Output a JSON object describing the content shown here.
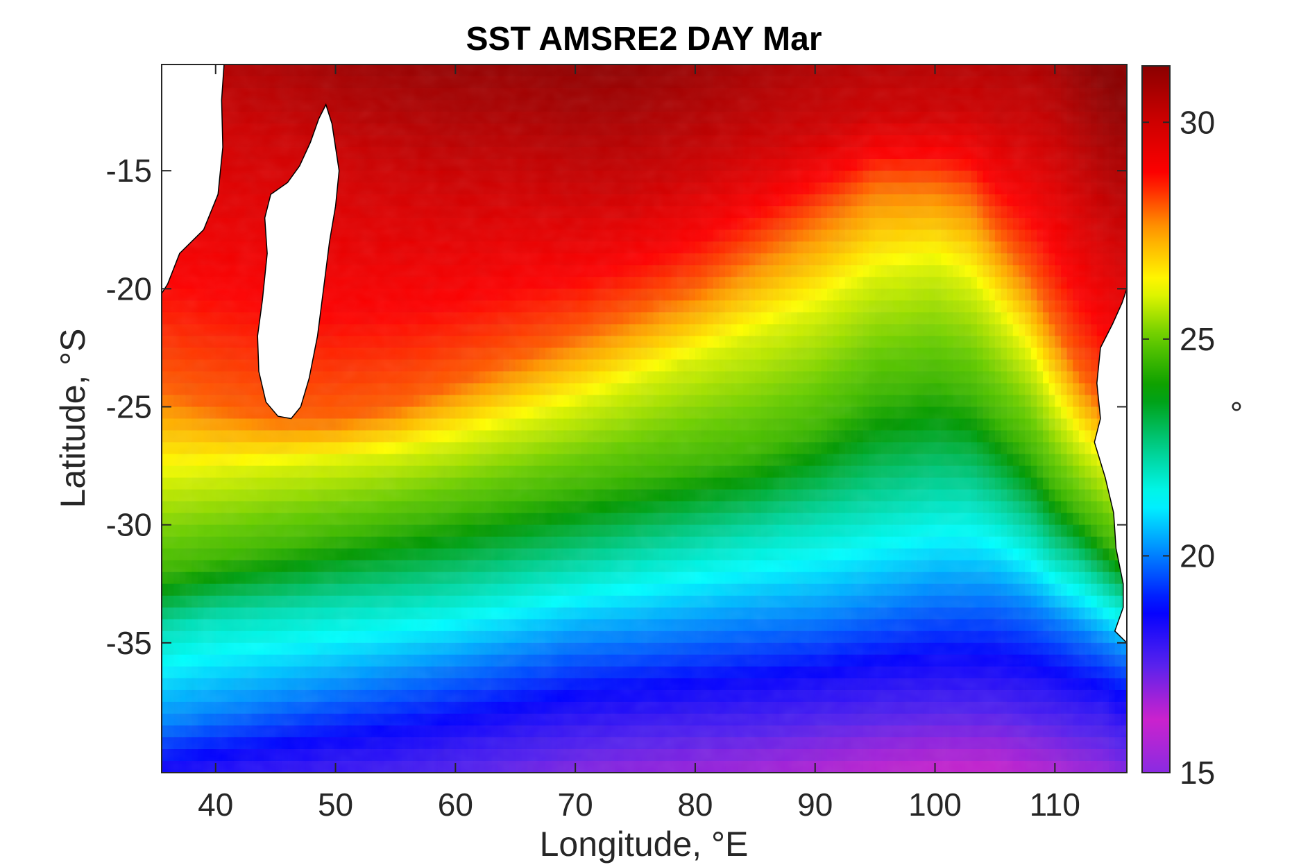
{
  "chart_data": {
    "type": "heatmap",
    "title": "SST AMSRE2 DAY Mar",
    "xlabel": "Longitude, °E",
    "ylabel": "Latitude, °S",
    "colorbar_label": "°",
    "xlim": [
      35.5,
      116
    ],
    "ylim": [
      -40.5,
      -10.5
    ],
    "xticks": [
      40,
      50,
      60,
      70,
      80,
      90,
      100,
      110
    ],
    "xtick_labels": [
      "40",
      "50",
      "60",
      "70",
      "80",
      "90",
      "100",
      "110"
    ],
    "yticks": [
      -15,
      -20,
      -25,
      -30,
      -35
    ],
    "ytick_labels": [
      "-15",
      "-20",
      "-25",
      "-30",
      "-35"
    ],
    "clim": [
      15,
      31.3
    ],
    "colorbar_ticks": [
      15,
      20,
      25,
      30
    ],
    "colorbar_tick_labels": [
      "15",
      "20",
      "25",
      "30"
    ],
    "colormap": [
      "#8a2be2",
      "#cc22cc",
      "#5522ee",
      "#0000ff",
      "#0080ff",
      "#00ffff",
      "#00cc88",
      "#009900",
      "#66cc00",
      "#ffff00",
      "#ff9900",
      "#ff0000",
      "#cc0000",
      "#8b0000"
    ],
    "land_color": "#ffffff",
    "coastline_color": "#000000",
    "isotherms_by_longitude": {
      "longitudes": [
        35.5,
        40,
        45,
        50,
        55,
        60,
        65,
        70,
        75,
        80,
        85,
        90,
        95,
        100,
        103,
        105,
        108,
        110,
        112,
        114,
        116
      ],
      "sst_30": [
        -13.0,
        -13.0,
        -13.5,
        -14.5,
        -15.0,
        -15.5,
        -15.5,
        -16.0,
        -15.8,
        -15.0,
        -14.0,
        -13.2,
        -12.5,
        -12.5,
        -12.5,
        -12.8,
        -13.2,
        -14.0,
        -15.5,
        -17.0,
        -18.0
      ],
      "sst_28": [
        -24.3,
        -25.0,
        -25.5,
        -25.5,
        -25.0,
        -24.0,
        -23.0,
        -22.0,
        -21.0,
        -20.0,
        -18.5,
        -17.0,
        -15.5,
        -15.5,
        -16.0,
        -17.5,
        -19.5,
        -21.5,
        -23.5,
        -25.0,
        -26.0
      ],
      "sst_26": [
        -28.0,
        -27.8,
        -27.5,
        -27.3,
        -27.0,
        -26.5,
        -25.8,
        -25.0,
        -24.0,
        -23.0,
        -22.0,
        -21.0,
        -19.5,
        -19.0,
        -19.8,
        -21.0,
        -23.0,
        -25.0,
        -26.5,
        -27.5,
        -28.5
      ],
      "sst_24.5": [
        -32.0,
        -31.5,
        -31.0,
        -30.5,
        -30.0,
        -29.5,
        -29.0,
        -28.5,
        -28.0,
        -27.5,
        -27.0,
        -26.0,
        -24.5,
        -24.0,
        -24.5,
        -25.5,
        -27.0,
        -28.5,
        -29.5,
        -30.5,
        -31.5
      ],
      "sst_22": [
        -34.5,
        -34.0,
        -33.8,
        -33.5,
        -33.3,
        -33.0,
        -32.5,
        -32.0,
        -31.5,
        -31.0,
        -30.5,
        -30.0,
        -29.5,
        -29.0,
        -29.0,
        -29.5,
        -30.5,
        -31.5,
        -32.0,
        -32.8,
        -33.5
      ],
      "sst_20": [
        -38.5,
        -38.0,
        -37.5,
        -37.0,
        -36.5,
        -36.0,
        -35.5,
        -35.0,
        -34.8,
        -34.5,
        -34.2,
        -34.0,
        -33.5,
        -33.0,
        -33.0,
        -33.0,
        -33.5,
        -34.0,
        -34.5,
        -35.0,
        -35.5
      ],
      "sst_18": [
        -41.0,
        -40.8,
        -40.5,
        -40.2,
        -40.0,
        -39.5,
        -39.0,
        -38.5,
        -38.2,
        -38.0,
        -37.8,
        -37.5,
        -37.2,
        -37.0,
        -37.0,
        -37.0,
        -37.3,
        -37.5,
        -37.8,
        -38.0,
        -38.5
      ]
    },
    "land_areas": [
      {
        "name": "Africa",
        "outline_lon_lat": [
          [
            35.5,
            -10.5
          ],
          [
            40.7,
            -10.5
          ],
          [
            40.5,
            -12.0
          ],
          [
            40.6,
            -14.0
          ],
          [
            40.2,
            -16.0
          ],
          [
            39.0,
            -17.5
          ],
          [
            37.0,
            -18.5
          ],
          [
            36.0,
            -19.8
          ],
          [
            35.5,
            -20.2
          ]
        ]
      },
      {
        "name": "Madagascar",
        "outline_lon_lat": [
          [
            49.2,
            -12.2
          ],
          [
            49.7,
            -13.0
          ],
          [
            50.3,
            -15.0
          ],
          [
            50.0,
            -16.5
          ],
          [
            49.5,
            -18.0
          ],
          [
            49.0,
            -20.0
          ],
          [
            48.5,
            -22.0
          ],
          [
            47.8,
            -23.8
          ],
          [
            47.1,
            -25.0
          ],
          [
            46.3,
            -25.5
          ],
          [
            45.2,
            -25.4
          ],
          [
            44.2,
            -24.8
          ],
          [
            43.6,
            -23.5
          ],
          [
            43.5,
            -22.0
          ],
          [
            43.9,
            -20.5
          ],
          [
            44.3,
            -18.5
          ],
          [
            44.1,
            -17.0
          ],
          [
            44.6,
            -16.0
          ],
          [
            46.0,
            -15.5
          ],
          [
            47.0,
            -14.8
          ],
          [
            47.9,
            -13.8
          ],
          [
            48.6,
            -12.8
          ]
        ]
      },
      {
        "name": "Australia",
        "outline_lon_lat": [
          [
            116,
            -20.0
          ],
          [
            115.6,
            -20.6
          ],
          [
            114.8,
            -21.5
          ],
          [
            113.8,
            -22.5
          ],
          [
            113.5,
            -24.0
          ],
          [
            113.8,
            -25.5
          ],
          [
            113.3,
            -26.5
          ],
          [
            114.2,
            -28.0
          ],
          [
            114.9,
            -29.5
          ],
          [
            115.1,
            -31.0
          ],
          [
            115.7,
            -32.5
          ],
          [
            115.7,
            -33.5
          ],
          [
            115.0,
            -34.5
          ],
          [
            116,
            -35.0
          ]
        ]
      }
    ]
  }
}
